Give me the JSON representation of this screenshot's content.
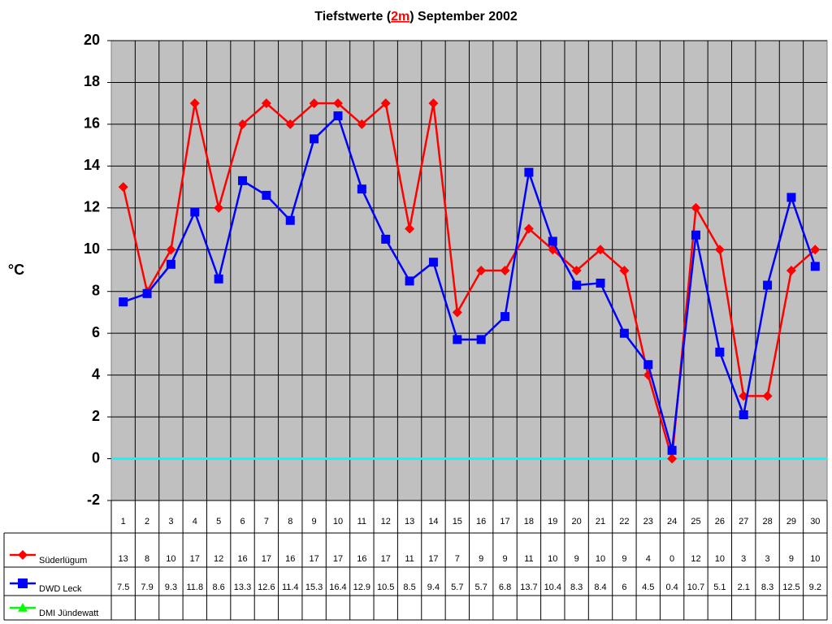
{
  "chart_data": {
    "type": "line",
    "title": {
      "before": "Tiefstwerte (",
      "highlight": "2m",
      "after": ") September 2002"
    },
    "y_label": "°C",
    "categories": [
      "1",
      "2",
      "3",
      "4",
      "5",
      "6",
      "7",
      "8",
      "9",
      "10",
      "11",
      "12",
      "13",
      "14",
      "15",
      "16",
      "17",
      "18",
      "19",
      "20",
      "21",
      "22",
      "23",
      "24",
      "25",
      "26",
      "27",
      "28",
      "29",
      "30"
    ],
    "series": [
      {
        "name": "Süderlügum",
        "color": "#ff0000",
        "marker": "diamond",
        "values": [
          13,
          8,
          10,
          17,
          12,
          16,
          17,
          16,
          17,
          17,
          16,
          17,
          11,
          17,
          7,
          9,
          9,
          11,
          10,
          9,
          10,
          9,
          4,
          0,
          12,
          10,
          3,
          3,
          9,
          10
        ]
      },
      {
        "name": "DWD Leck",
        "color": "#0000ff",
        "marker": "square",
        "values": [
          7.5,
          7.9,
          9.3,
          11.8,
          8.6,
          13.3,
          12.6,
          11.4,
          15.3,
          16.4,
          12.9,
          10.5,
          8.5,
          9.4,
          5.7,
          5.7,
          6.8,
          13.7,
          10.4,
          8.3,
          8.4,
          6,
          4.5,
          0.4,
          10.7,
          5.1,
          2.1,
          8.3,
          12.5,
          9.2
        ]
      },
      {
        "name": "DMI Jündewatt",
        "color": "#00ff00",
        "marker": "triangle",
        "values": [
          null,
          null,
          null,
          null,
          null,
          null,
          null,
          null,
          null,
          null,
          null,
          null,
          null,
          null,
          null,
          null,
          null,
          null,
          null,
          null,
          null,
          null,
          null,
          null,
          null,
          null,
          null,
          null,
          null,
          null
        ]
      }
    ],
    "ylim": [
      -2,
      20
    ],
    "yticks": [
      -2,
      0,
      2,
      4,
      6,
      8,
      10,
      12,
      14,
      16,
      18,
      20
    ],
    "grid": true,
    "plot_background": "#c0c0c0",
    "zero_line_color": "#00ffff",
    "data_table": true
  }
}
